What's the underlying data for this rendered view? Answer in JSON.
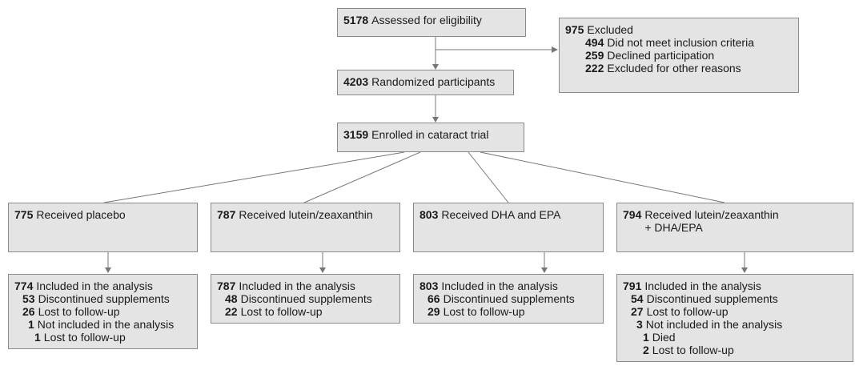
{
  "assessed": {
    "count": 5178,
    "label": "Assessed for eligibility"
  },
  "excluded": {
    "count": 975,
    "label": "Excluded",
    "reasons": [
      {
        "count": 494,
        "label": "Did not meet inclusion criteria"
      },
      {
        "count": 259,
        "label": "Declined participation"
      },
      {
        "count": 222,
        "label": "Excluded for other reasons"
      }
    ]
  },
  "randomized": {
    "count": 4203,
    "label": "Randomized participants"
  },
  "enrolled": {
    "count": 3159,
    "label": "Enrolled in cataract trial"
  },
  "arms": [
    {
      "received": {
        "count": 775,
        "label": [
          "Received placebo"
        ]
      },
      "included": {
        "count": 774,
        "label": "Included in the analysis",
        "details": [
          {
            "count": 53,
            "label": "Discontinued supplements"
          },
          {
            "count": 26,
            "label": "Lost to follow-up"
          }
        ]
      },
      "not_included": {
        "count": 1,
        "label": "Not included in the analysis",
        "details": [
          {
            "count": 1,
            "label": "Lost to follow-up"
          }
        ]
      }
    },
    {
      "received": {
        "count": 787,
        "label": [
          "Received lutein/zeaxanthin"
        ]
      },
      "included": {
        "count": 787,
        "label": "Included in the analysis",
        "details": [
          {
            "count": 48,
            "label": "Discontinued supplements"
          },
          {
            "count": 22,
            "label": "Lost to follow-up"
          }
        ]
      }
    },
    {
      "received": {
        "count": 803,
        "label": [
          "Received DHA and EPA"
        ]
      },
      "included": {
        "count": 803,
        "label": "Included in the analysis",
        "details": [
          {
            "count": 66,
            "label": "Discontinued supplements"
          },
          {
            "count": 29,
            "label": "Lost to follow-up"
          }
        ]
      }
    },
    {
      "received": {
        "count": 794,
        "label": [
          "Received lutein/zeaxanthin",
          "+ DHA/EPA"
        ]
      },
      "included": {
        "count": 791,
        "label": "Included in the analysis",
        "details": [
          {
            "count": 54,
            "label": "Discontinued supplements"
          },
          {
            "count": 27,
            "label": "Lost to follow-up"
          }
        ]
      },
      "not_included": {
        "count": 3,
        "label": "Not included in the analysis",
        "details": [
          {
            "count": 1,
            "label": "Died"
          },
          {
            "count": 2,
            "label": "Lost to follow-up"
          }
        ]
      }
    }
  ]
}
